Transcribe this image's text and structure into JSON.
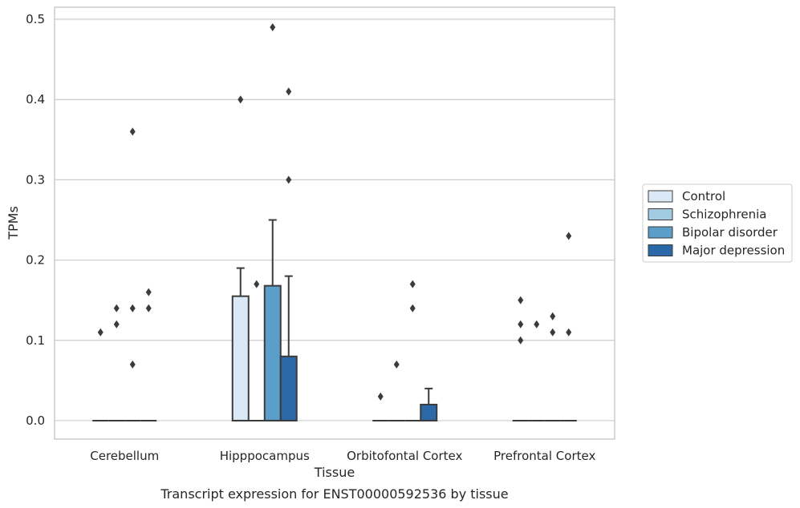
{
  "chart_data": {
    "type": "box",
    "caption": "Transcript expression for ENST00000592536 by tissue",
    "xlabel": "Tissue",
    "ylabel": "TPMs",
    "ylim": [
      -0.023,
      0.515
    ],
    "yticks": [
      "0.0",
      "0.1",
      "0.2",
      "0.3",
      "0.4",
      "0.5"
    ],
    "ytick_values": [
      0,
      0.1,
      0.2,
      0.3,
      0.4,
      0.5
    ],
    "grid": "horizontal",
    "legend_position": "right",
    "categories": [
      "Cerebellum",
      "Hipppocampus",
      "Orbitofontal Cortex",
      "Prefrontal Cortex"
    ],
    "series": [
      {
        "name": "Control",
        "color": "#dbe9f6",
        "boxes": [
          {
            "q1": 0,
            "median": 0,
            "q3": 0,
            "whisker_low": 0,
            "whisker_high": 0,
            "outliers": [
              0.11
            ]
          },
          {
            "q1": 0,
            "median": 0,
            "q3": 0.155,
            "whisker_low": 0,
            "whisker_high": 0.19,
            "outliers": [
              0.4
            ]
          },
          {
            "q1": 0,
            "median": 0,
            "q3": 0,
            "whisker_low": 0,
            "whisker_high": 0,
            "outliers": [
              0.03
            ]
          },
          {
            "q1": 0,
            "median": 0,
            "q3": 0,
            "whisker_low": 0,
            "whisker_high": 0,
            "outliers": [
              0.1,
              0.12,
              0.15
            ]
          }
        ]
      },
      {
        "name": "Schizophrenia",
        "color": "#a3cce3",
        "boxes": [
          {
            "q1": 0,
            "median": 0,
            "q3": 0,
            "whisker_low": 0,
            "whisker_high": 0,
            "outliers": [
              0.12,
              0.14
            ]
          },
          {
            "q1": 0,
            "median": 0,
            "q3": 0,
            "whisker_low": 0,
            "whisker_high": 0,
            "outliers": [
              0.17
            ]
          },
          {
            "q1": 0,
            "median": 0,
            "q3": 0,
            "whisker_low": 0,
            "whisker_high": 0,
            "outliers": [
              0.07
            ]
          },
          {
            "q1": 0,
            "median": 0,
            "q3": 0,
            "whisker_low": 0,
            "whisker_high": 0,
            "outliers": [
              0.12
            ]
          }
        ]
      },
      {
        "name": "Bipolar disorder",
        "color": "#5a9ec9",
        "boxes": [
          {
            "q1": 0,
            "median": 0,
            "q3": 0,
            "whisker_low": 0,
            "whisker_high": 0,
            "outliers": [
              0.07,
              0.14,
              0.36
            ]
          },
          {
            "q1": 0,
            "median": 0,
            "q3": 0.168,
            "whisker_low": 0,
            "whisker_high": 0.25,
            "outliers": [
              0.49
            ]
          },
          {
            "q1": 0,
            "median": 0,
            "q3": 0,
            "whisker_low": 0,
            "whisker_high": 0,
            "outliers": [
              0.14,
              0.17
            ]
          },
          {
            "q1": 0,
            "median": 0,
            "q3": 0,
            "whisker_low": 0,
            "whisker_high": 0,
            "outliers": [
              0.11,
              0.13
            ]
          }
        ]
      },
      {
        "name": "Major depression",
        "color": "#2a68a8",
        "boxes": [
          {
            "q1": 0,
            "median": 0,
            "q3": 0,
            "whisker_low": 0,
            "whisker_high": 0,
            "outliers": [
              0.14,
              0.16
            ]
          },
          {
            "q1": 0,
            "median": 0,
            "q3": 0.08,
            "whisker_low": 0,
            "whisker_high": 0.18,
            "outliers": [
              0.3,
              0.41
            ]
          },
          {
            "q1": 0,
            "median": 0,
            "q3": 0.02,
            "whisker_low": 0,
            "whisker_high": 0.04,
            "outliers": []
          },
          {
            "q1": 0,
            "median": 0,
            "q3": 0,
            "whisker_low": 0,
            "whisker_high": 0,
            "outliers": [
              0.11,
              0.23
            ]
          }
        ]
      }
    ]
  }
}
